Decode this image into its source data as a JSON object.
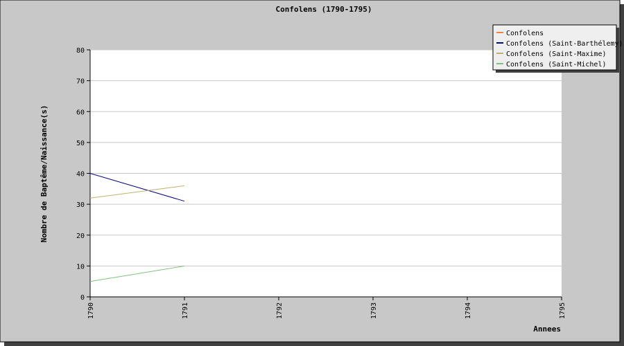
{
  "chart_data": {
    "type": "line",
    "title": "Confolens (1790-1795)",
    "xlabel": "Annees",
    "ylabel": "Nombre de Baptême/Naissance(s)",
    "x": [
      1790,
      1791,
      1792,
      1793,
      1794,
      1795
    ],
    "x_tick_labels": [
      "1790",
      "1791",
      "1792",
      "1793",
      "1794",
      "1795"
    ],
    "xlim": [
      1790,
      1795
    ],
    "ylim": [
      0,
      80
    ],
    "y_ticks": [
      0,
      10,
      20,
      30,
      40,
      50,
      60,
      70,
      80
    ],
    "y_tick_labels": [
      "0",
      "10",
      "20",
      "30",
      "40",
      "50",
      "60",
      "70",
      "80"
    ],
    "grid": true,
    "legend_position": "top-right",
    "series": [
      {
        "name": "Confolens",
        "color": "#ff8040",
        "points": []
      },
      {
        "name": "Confolens (Saint-Barthélemy)",
        "color": "#000080",
        "points": [
          [
            1790,
            40
          ],
          [
            1791,
            31
          ]
        ]
      },
      {
        "name": "Confolens (Saint-Maxime)",
        "color": "#c0b070",
        "points": [
          [
            1790,
            32
          ],
          [
            1791,
            36
          ]
        ]
      },
      {
        "name": "Confolens (Saint-Michel)",
        "color": "#80c080",
        "points": [
          [
            1790,
            5
          ],
          [
            1791,
            10
          ]
        ]
      }
    ]
  },
  "colors": {
    "frame_background": "#c8c8c8",
    "plot_background": "#ffffff",
    "grid": "#c8c8c8",
    "legend_background": "#efefef",
    "shadow": "#404040"
  }
}
